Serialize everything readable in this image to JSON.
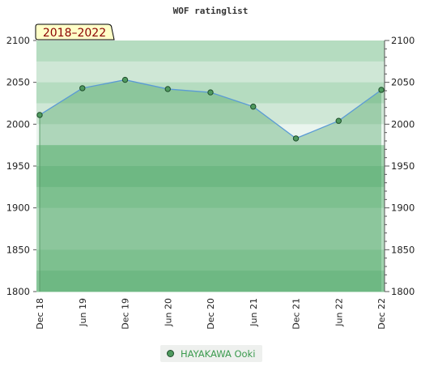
{
  "chart_data": {
    "type": "line",
    "title": "WOF ratinglist",
    "period_label": "2018–2022",
    "x": [
      "Dec 18",
      "Jun 19",
      "Dec 19",
      "Jun 20",
      "Dec 20",
      "Jun 21",
      "Dec 21",
      "Jun 22",
      "Dec 22"
    ],
    "series": [
      {
        "name": "HAYAKAWA Ooki",
        "values": [
          2011,
          2043,
          2053,
          2042,
          2038,
          2021,
          1983,
          2004,
          2041
        ]
      }
    ],
    "ylim": [
      1800,
      2100
    ],
    "yticks": [
      1800,
      1850,
      1900,
      1950,
      2000,
      2050,
      2100
    ],
    "y_axis_sides": [
      "left",
      "right"
    ],
    "legend_position": "bottom-center",
    "colors": {
      "line": "#5b9bd5",
      "marker_fill": "#4f9a5f",
      "marker_stroke": "#1e4d2b",
      "area_fill": "#7cbf8c",
      "legend_text": "#3c9b4f"
    }
  }
}
